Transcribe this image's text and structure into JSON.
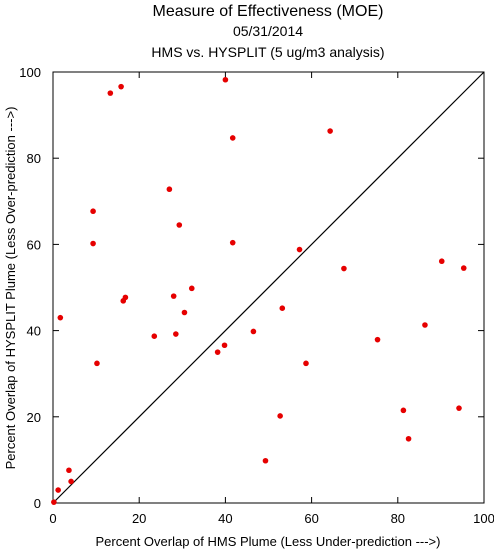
{
  "chart_data": {
    "type": "scatter",
    "title": "Measure of Effectiveness (MOE)",
    "subtitle": "05/31/2014",
    "subtitle2": "HMS vs. HYSPLIT  (5 ug/m3 analysis)",
    "xlabel": "Percent Overlap of HMS Plume (Less Under-prediction --->)",
    "ylabel": "Percent Overlap of HYSPLIT Plume (Less Over-prediction --->)",
    "xlim": [
      0,
      100
    ],
    "ylim": [
      0,
      100
    ],
    "xticks": [
      0,
      20,
      40,
      60,
      80,
      100
    ],
    "yticks": [
      0,
      20,
      40,
      60,
      80,
      100
    ],
    "grid": false,
    "reference_line": "y = x",
    "point_color": "#e60000",
    "points": [
      {
        "x": 0.2,
        "y": 0.2
      },
      {
        "x": 1.2,
        "y": 3.0
      },
      {
        "x": 4.2,
        "y": 5.0
      },
      {
        "x": 3.7,
        "y": 7.6
      },
      {
        "x": 1.7,
        "y": 43.0
      },
      {
        "x": 10.2,
        "y": 32.4
      },
      {
        "x": 9.3,
        "y": 60.2
      },
      {
        "x": 9.3,
        "y": 67.7
      },
      {
        "x": 13.3,
        "y": 95.1
      },
      {
        "x": 15.8,
        "y": 96.6
      },
      {
        "x": 16.3,
        "y": 46.9
      },
      {
        "x": 16.8,
        "y": 47.7
      },
      {
        "x": 23.5,
        "y": 38.7
      },
      {
        "x": 27.0,
        "y": 72.8
      },
      {
        "x": 28.0,
        "y": 48.0
      },
      {
        "x": 28.5,
        "y": 39.2
      },
      {
        "x": 29.3,
        "y": 64.5
      },
      {
        "x": 30.5,
        "y": 44.2
      },
      {
        "x": 32.2,
        "y": 49.8
      },
      {
        "x": 38.2,
        "y": 35.0
      },
      {
        "x": 39.8,
        "y": 36.6
      },
      {
        "x": 40.0,
        "y": 98.2
      },
      {
        "x": 41.7,
        "y": 84.7
      },
      {
        "x": 41.7,
        "y": 60.4
      },
      {
        "x": 46.5,
        "y": 39.8
      },
      {
        "x": 49.3,
        "y": 9.8
      },
      {
        "x": 52.7,
        "y": 20.2
      },
      {
        "x": 53.2,
        "y": 45.2
      },
      {
        "x": 57.2,
        "y": 58.8
      },
      {
        "x": 58.7,
        "y": 32.4
      },
      {
        "x": 64.3,
        "y": 86.3
      },
      {
        "x": 67.5,
        "y": 54.4
      },
      {
        "x": 75.3,
        "y": 37.9
      },
      {
        "x": 81.3,
        "y": 21.5
      },
      {
        "x": 82.5,
        "y": 14.9
      },
      {
        "x": 86.3,
        "y": 41.3
      },
      {
        "x": 90.2,
        "y": 56.1
      },
      {
        "x": 94.2,
        "y": 22.0
      },
      {
        "x": 95.3,
        "y": 54.5
      }
    ]
  }
}
